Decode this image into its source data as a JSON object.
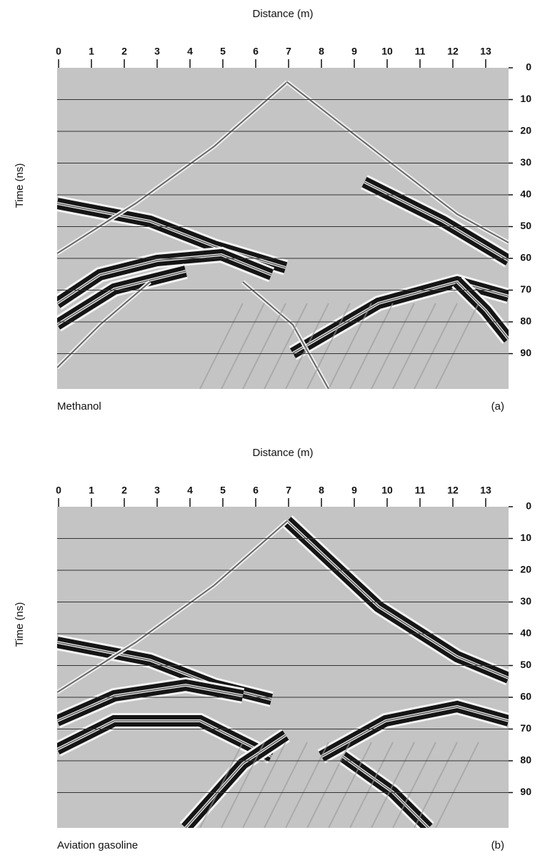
{
  "panels": [
    {
      "x_label": "Distance (m)",
      "x_ticks": [
        0,
        1,
        2,
        3,
        4,
        5,
        6,
        7,
        8,
        9,
        10,
        11,
        12,
        13
      ],
      "y_label": "Time (ns)",
      "y_ticks": [
        0,
        10,
        20,
        30,
        40,
        50,
        60,
        70,
        80,
        90
      ],
      "caption": "Methanol",
      "label": "(a)"
    },
    {
      "x_label": "Distance (m)",
      "x_ticks": [
        0,
        1,
        2,
        3,
        4,
        5,
        6,
        7,
        8,
        9,
        10,
        11,
        12,
        13
      ],
      "y_label": "Time (ns)",
      "y_ticks": [
        0,
        10,
        20,
        30,
        40,
        50,
        60,
        70,
        80,
        90
      ],
      "caption": "Aviation gasoline",
      "label": "(b)"
    }
  ]
}
